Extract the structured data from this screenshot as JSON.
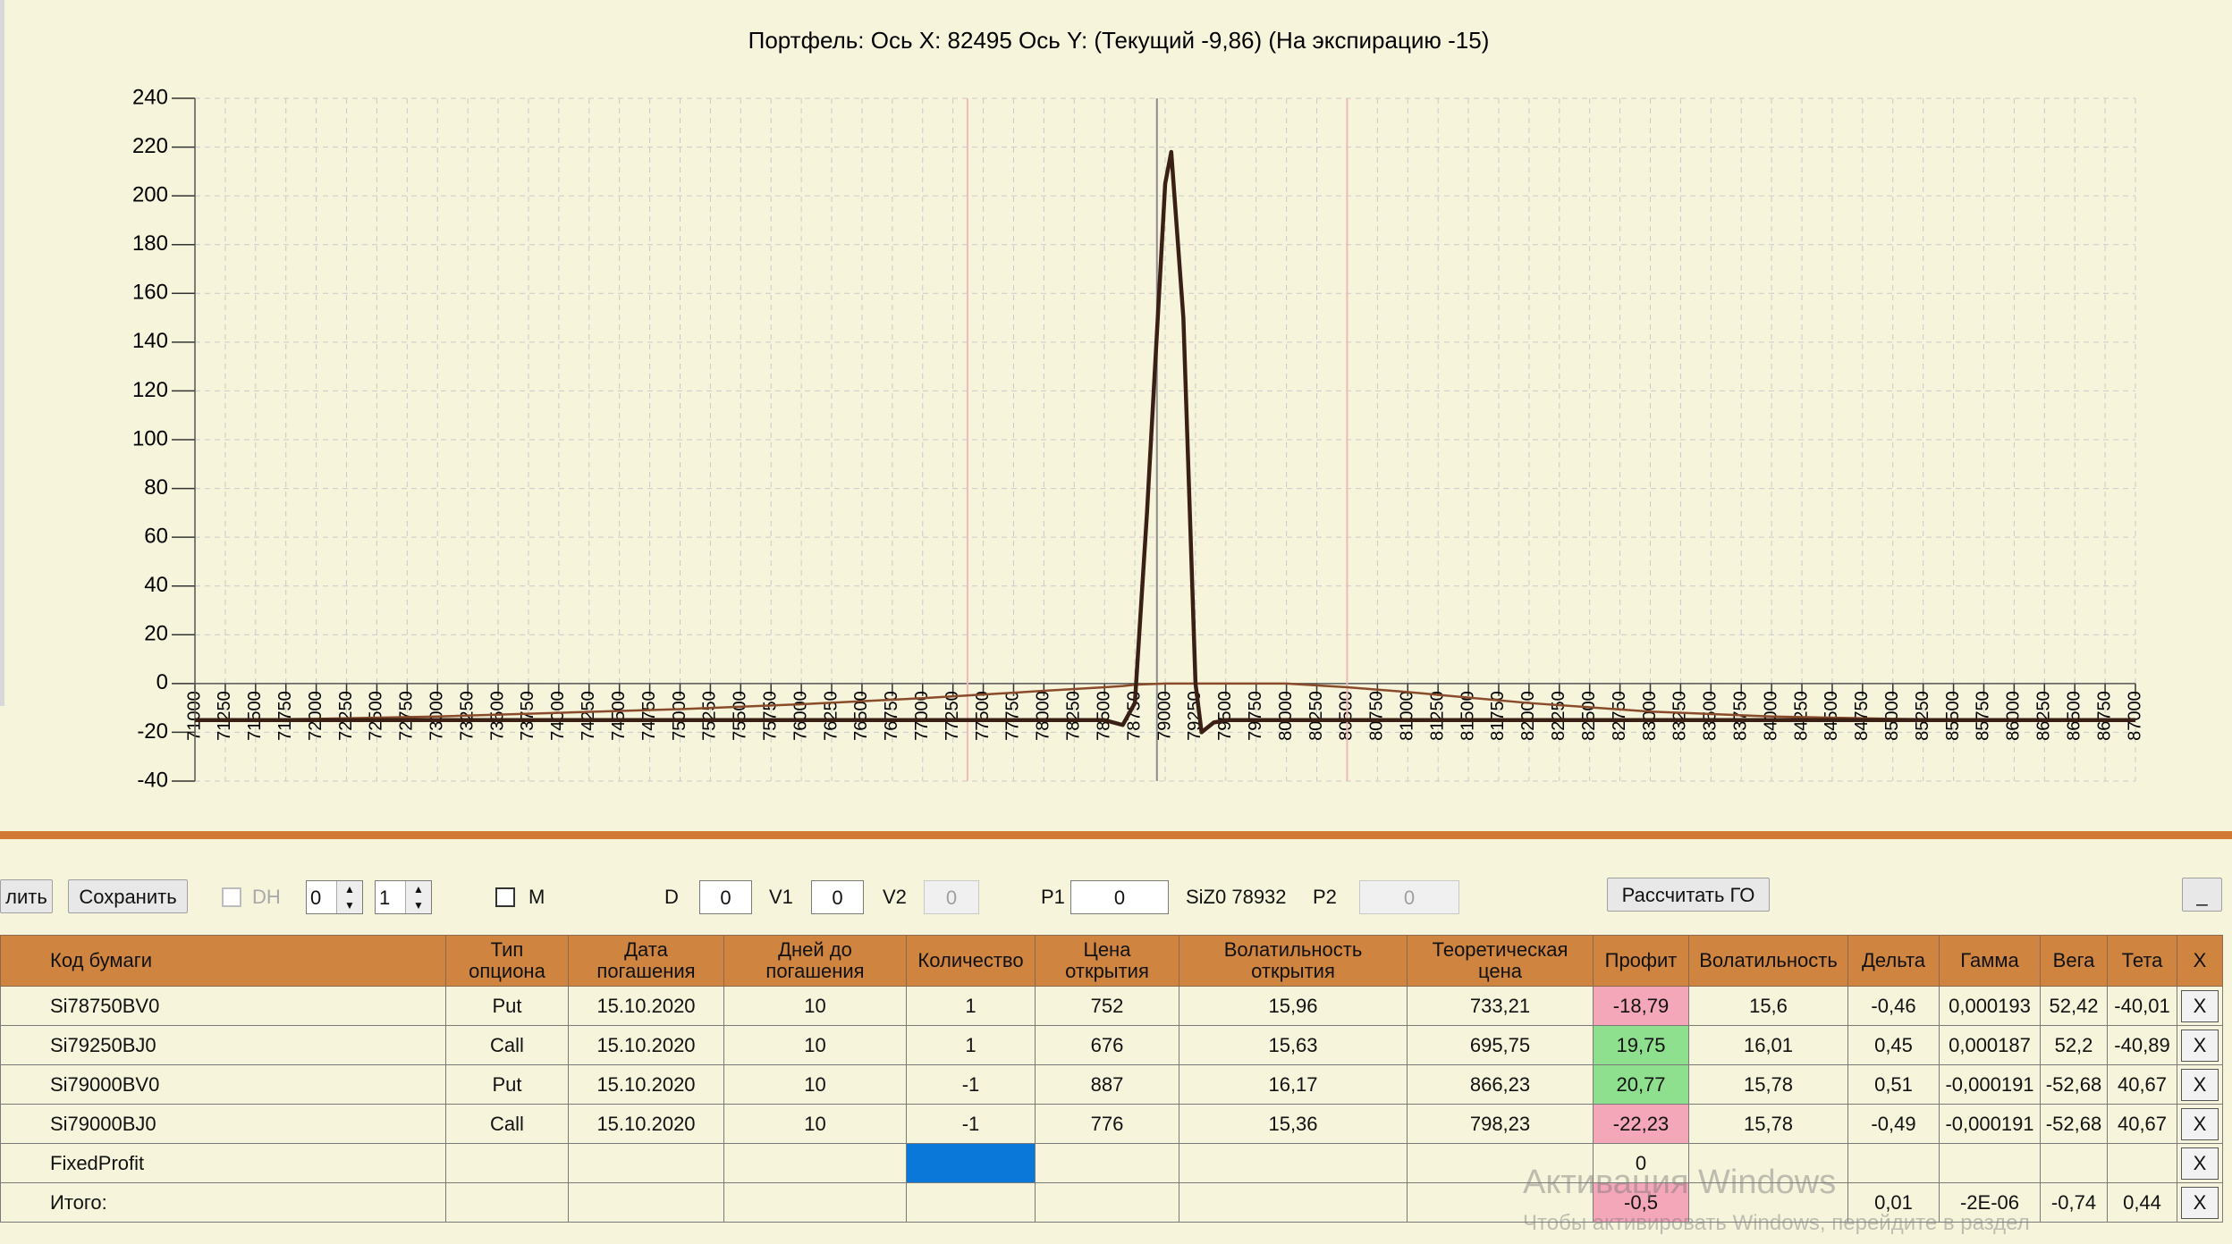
{
  "chart_data": {
    "type": "line",
    "title": "Портфель: Ось X: 82495 Ось Y:  (Текущий -9,86)  (На экспирацию -15)",
    "x": [
      71000,
      72000,
      73000,
      74000,
      75000,
      76000,
      77000,
      77500,
      78000,
      78500,
      78650,
      78750,
      78850,
      79000,
      79050,
      79150,
      79250,
      79300,
      79400,
      79500,
      80000,
      80500,
      81000,
      82000,
      83000,
      84000,
      85000,
      86000,
      87000
    ],
    "series": [
      {
        "color": "#8a4b2a",
        "values": [
          -15,
          -14.5,
          -13.5,
          -12,
          -10.5,
          -8.5,
          -6,
          -4.5,
          -3,
          -1.5,
          -1,
          -0.5,
          -0.3,
          0,
          0,
          0,
          0,
          0,
          0,
          0,
          0,
          -1.5,
          -3.5,
          -8,
          -11.5,
          -13.5,
          -14.5,
          -15,
          -15
        ]
      },
      {
        "color": "#3a1f14",
        "values": [
          -15,
          -15,
          -15,
          -15,
          -15,
          -15,
          -15,
          -15,
          -15,
          -15,
          -17,
          -8,
          70,
          205,
          218,
          150,
          0,
          -20,
          -16,
          -15,
          -15,
          -15,
          -15,
          -15,
          -15,
          -15,
          -15,
          -15,
          -15
        ]
      }
    ],
    "vlines": [
      {
        "value": 77370,
        "color": "#f2b8b8"
      },
      {
        "value": 78932,
        "color": "#8c8c8c"
      },
      {
        "value": 80500,
        "color": "#f2b8b8"
      }
    ],
    "xlim": [
      71000,
      87000
    ],
    "xticks": [
      71000,
      71250,
      71500,
      71750,
      72000,
      72250,
      72500,
      72750,
      73000,
      73250,
      73500,
      73750,
      74000,
      74250,
      74500,
      74750,
      75000,
      75250,
      75500,
      75750,
      76000,
      76250,
      76500,
      76750,
      77000,
      77250,
      77500,
      77750,
      78000,
      78250,
      78500,
      78750,
      79000,
      79250,
      79500,
      79750,
      80000,
      80250,
      80500,
      80750,
      81000,
      81250,
      81500,
      81750,
      82000,
      82250,
      82500,
      82750,
      83000,
      83250,
      83500,
      83750,
      84000,
      84250,
      84500,
      84750,
      85000,
      85250,
      85500,
      85750,
      86000,
      86250,
      86500,
      86750,
      87000
    ],
    "ylim": [
      -40,
      240
    ],
    "yticks": [
      -40,
      -20,
      0,
      20,
      40,
      60,
      80,
      100,
      120,
      140,
      160,
      180,
      200,
      220,
      240
    ],
    "grid": true
  },
  "toolbar": {
    "delete_button": "лить",
    "save_button": "Сохранить",
    "dh_label": "DH",
    "spin1": "0",
    "spin2": "1",
    "m_label": "M",
    "d_label": "D",
    "d_value": "0",
    "v1_label": "V1",
    "v1_value": "0",
    "v2_label": "V2",
    "v2_value": "0",
    "p1_label": "P1",
    "p1_value": "0",
    "instrument": "SiZ0 78932",
    "p2_label": "P2",
    "p2_value": "0",
    "calc_button": "Рассчитать ГО",
    "minimize_button": "_"
  },
  "table": {
    "columns": [
      "Код бумаги",
      "Тип\nопциона",
      "Дата\nпогашения",
      "Дней до\nпогашения",
      "Количество",
      "Цена\nоткрытия",
      "Волатильность\nоткрытия",
      "Теоретическая\nцена",
      "Профит",
      "Волатильность",
      "Дельта",
      "Гамма",
      "Вега",
      "Тета",
      "X"
    ],
    "rows": [
      {
        "cells": [
          "Si78750BV0",
          "Put",
          "15.10.2020",
          "10",
          "1",
          "752",
          "15,96",
          "733,21",
          "-18,79",
          "15,6",
          "-0,46",
          "0,000193",
          "52,42",
          "-40,01",
          "X"
        ],
        "highlight": {
          "8": "#f4a7b9"
        }
      },
      {
        "cells": [
          "Si79250BJ0",
          "Call",
          "15.10.2020",
          "10",
          "1",
          "676",
          "15,63",
          "695,75",
          "19,75",
          "16,01",
          "0,45",
          "0,000187",
          "52,2",
          "-40,89",
          "X"
        ],
        "highlight": {
          "8": "#8ee08e"
        }
      },
      {
        "cells": [
          "Si79000BV0",
          "Put",
          "15.10.2020",
          "10",
          "-1",
          "887",
          "16,17",
          "866,23",
          "20,77",
          "15,78",
          "0,51",
          "-0,000191",
          "-52,68",
          "40,67",
          "X"
        ],
        "highlight": {
          "8": "#8ee08e"
        }
      },
      {
        "cells": [
          "Si79000BJ0",
          "Call",
          "15.10.2020",
          "10",
          "-1",
          "776",
          "15,36",
          "798,23",
          "-22,23",
          "15,78",
          "-0,49",
          "-0,000191",
          "-52,68",
          "40,67",
          "X"
        ],
        "highlight": {
          "8": "#f4a7b9"
        }
      },
      {
        "cells": [
          "FixedProfit",
          null,
          null,
          null,
          null,
          null,
          null,
          null,
          "0",
          null,
          null,
          null,
          null,
          null,
          "X"
        ],
        "highlight": {
          "4": "#0a78d8"
        }
      },
      {
        "cells": [
          "Итого:",
          null,
          null,
          null,
          null,
          null,
          null,
          null,
          "-0,5",
          null,
          "0,01",
          "-2E-06",
          "-0,74",
          "0,44",
          "X"
        ],
        "highlight": {
          "8": "#f4a7b9"
        }
      }
    ]
  },
  "watermark": {
    "line1": "Активация Windows",
    "line2": "Чтобы активировать Windows, перейдите в раздел"
  }
}
